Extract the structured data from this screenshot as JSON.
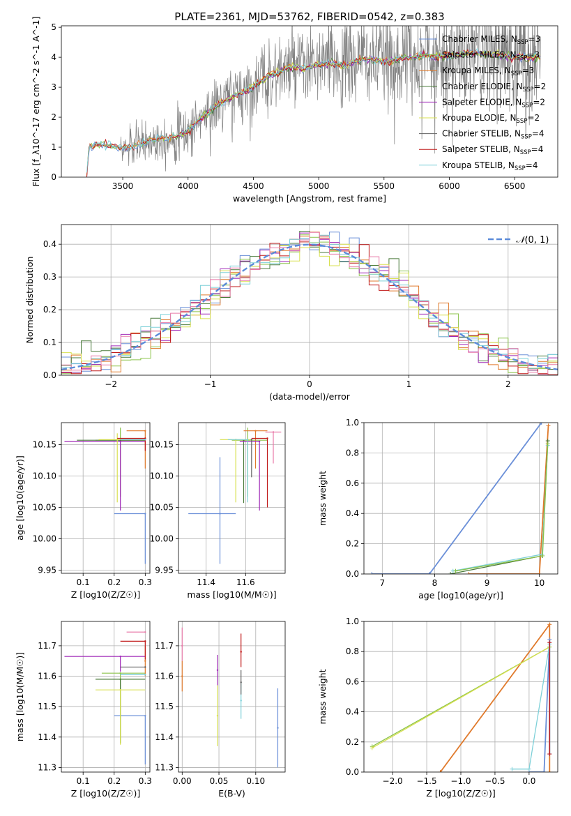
{
  "figure": {
    "title": "PLATE=2361, MJD=53762, FIBERID=0542, z=0.383"
  },
  "colors": {
    "Chabrier MILES": "#6a8fd8",
    "Salpeter MILES": "#8bc34a",
    "Kroupa MILES": "#e07a2c",
    "Chabrier ELODIE": "#4a7a3a",
    "Salpeter ELODIE": "#a02ab8",
    "Kroupa ELODIE": "#d8e050",
    "Chabrier STELIB": "#606060",
    "Salpeter STELIB": "#c01818",
    "Kroupa STELIB": "#7ed0d8",
    "extra_pink": "#e87aa8",
    "data_gray": "#808080",
    "normal_curve": "#5b8bd9",
    "grid": "#b0b0b0"
  },
  "chart_data": [
    {
      "id": "spectrum",
      "type": "line",
      "xlabel": "wavelength [Angstrom, rest frame]",
      "ylabel": "Flux [f_λ10^-17 erg cm^-2 s^-1 A^-1]",
      "xlim": [
        3030,
        6830
      ],
      "ylim": [
        0,
        5.05
      ],
      "xticks": [
        3500,
        4000,
        4500,
        5000,
        5500,
        6000,
        6500
      ],
      "yticks": [
        0,
        1,
        2,
        3,
        4,
        5
      ],
      "grid": false,
      "legend_position": "top-right",
      "legend": [
        {
          "label": "Chabrier MILES, N",
          "sub": "SSP",
          "tail": "=3"
        },
        {
          "label": "Salpeter MILES, N",
          "sub": "SSP",
          "tail": "=3"
        },
        {
          "label": "Kroupa MILES, N",
          "sub": "SSP",
          "tail": "=3"
        },
        {
          "label": "Chabrier ELODIE, N",
          "sub": "SSP",
          "tail": "=2"
        },
        {
          "label": "Salpeter ELODIE, N",
          "sub": "SSP",
          "tail": "=2"
        },
        {
          "label": "Kroupa ELODIE, N",
          "sub": "SSP",
          "tail": "=2"
        },
        {
          "label": "Chabrier STELIB, N",
          "sub": "SSP",
          "tail": "=4"
        },
        {
          "label": "Salpeter STELIB, N",
          "sub": "SSP",
          "tail": "=4"
        },
        {
          "label": "Kroupa STELIB, N",
          "sub": "SSP",
          "tail": "=4"
        }
      ],
      "model_continuum": [
        [
          3225,
          0.0
        ],
        [
          3240,
          1.0
        ],
        [
          3300,
          1.1
        ],
        [
          3400,
          1.05
        ],
        [
          3500,
          0.95
        ],
        [
          3600,
          1.05
        ],
        [
          3700,
          1.2
        ],
        [
          3800,
          1.3
        ],
        [
          3900,
          1.35
        ],
        [
          4000,
          1.5
        ],
        [
          4100,
          2.0
        ],
        [
          4200,
          2.3
        ],
        [
          4300,
          2.6
        ],
        [
          4400,
          2.8
        ],
        [
          4500,
          3.0
        ],
        [
          4600,
          3.35
        ],
        [
          4700,
          3.5
        ],
        [
          4800,
          3.7
        ],
        [
          4900,
          3.6
        ],
        [
          5000,
          3.75
        ],
        [
          5100,
          3.8
        ],
        [
          5200,
          3.7
        ],
        [
          5300,
          3.9
        ],
        [
          5400,
          3.95
        ],
        [
          5500,
          3.85
        ],
        [
          5600,
          3.95
        ],
        [
          5700,
          4.0
        ],
        [
          5800,
          4.05
        ],
        [
          5900,
          4.0
        ],
        [
          6000,
          4.05
        ],
        [
          6100,
          4.1
        ],
        [
          6200,
          4.15
        ],
        [
          6300,
          4.1
        ],
        [
          6400,
          4.05
        ],
        [
          6500,
          4.0
        ],
        [
          6600,
          4.0
        ],
        [
          6700,
          4.0
        ]
      ]
    },
    {
      "id": "residuals",
      "type": "line",
      "xlabel": "(data-model)/error",
      "ylabel": "Normed distribution",
      "xlim": [
        -2.5,
        2.5
      ],
      "ylim": [
        0,
        0.46
      ],
      "xticks": [
        -2,
        -1,
        0,
        1,
        2
      ],
      "yticks": [
        0.0,
        0.1,
        0.2,
        0.3,
        0.4
      ],
      "grid": true,
      "legend_position": "top-right",
      "legend": [
        {
          "label": "N(0,1)"
        }
      ],
      "bin_width": 0.1
    },
    {
      "id": "age_vs_Z",
      "type": "scatter",
      "xlabel": "Z [log10(Z/Z☉)]",
      "ylabel": "age  [log10(age/yr)]",
      "xlim": [
        0.03,
        0.315
      ],
      "ylim": [
        9.945,
        10.185
      ],
      "xticks": [
        0.1,
        0.2,
        0.3
      ],
      "yticks": [
        9.95,
        10.0,
        10.05,
        10.1,
        10.15
      ],
      "grid": true,
      "points": [
        {
          "model": "Chabrier MILES",
          "x": 0.3,
          "y": 10.04,
          "xerr": [
            0.1,
            0.0
          ],
          "yerr": [
            0.08,
            0.0
          ]
        },
        {
          "model": "Salpeter MILES",
          "x": 0.22,
          "y": 10.157,
          "xerr": [
            0.08,
            0.08
          ],
          "yerr": [
            0.09,
            0.02
          ]
        },
        {
          "model": "Kroupa MILES",
          "x": 0.3,
          "y": 10.172,
          "xerr": [
            0.06,
            0.0
          ],
          "yerr": [
            0.06,
            0.0
          ]
        },
        {
          "model": "Chabrier ELODIE",
          "x": 0.22,
          "y": 10.157,
          "xerr": [
            0.14,
            0.08
          ],
          "yerr": [
            0.0,
            0.0
          ]
        },
        {
          "model": "Salpeter ELODIE",
          "x": 0.22,
          "y": 10.155,
          "xerr": [
            0.18,
            0.08
          ],
          "yerr": [
            0.11,
            0.0
          ]
        },
        {
          "model": "Kroupa ELODIE",
          "x": 0.21,
          "y": 10.158,
          "xerr": [
            0.06,
            0.09
          ],
          "yerr": [
            0.1,
            0.01
          ]
        },
        {
          "model": "Chabrier STELIB",
          "x": 0.3,
          "y": 10.158,
          "xerr": [
            0.08,
            0.0
          ],
          "yerr": [
            0.0,
            0.0
          ]
        },
        {
          "model": "Salpeter STELIB",
          "x": 0.3,
          "y": 10.16,
          "xerr": [
            0.09,
            0.0
          ],
          "yerr": [
            0.02,
            0.0
          ]
        },
        {
          "model": "Kroupa STELIB",
          "x": 0.3,
          "y": 10.158,
          "xerr": [
            0.08,
            0.0
          ],
          "yerr": [
            0.0,
            0.0
          ]
        }
      ]
    },
    {
      "id": "age_vs_mass",
      "type": "scatter",
      "xlabel": "mass [log10(M/M☉)]",
      "ylabel": "",
      "xlim": [
        11.26,
        11.8
      ],
      "ylim": [
        9.945,
        10.185
      ],
      "xticks": [
        11.4,
        11.6
      ],
      "yticks": [
        9.95,
        10.0,
        10.05,
        10.1,
        10.15
      ],
      "grid": true,
      "points": [
        {
          "model": "Chabrier MILES",
          "x": 11.47,
          "y": 10.04,
          "xerr": [
            0.16,
            0.08
          ],
          "yerr": [
            0.08,
            0.09
          ]
        },
        {
          "model": "Salpeter MILES",
          "x": 11.61,
          "y": 10.157,
          "xerr": [
            0.08,
            0.1
          ],
          "yerr": [
            0.09,
            0.02
          ]
        },
        {
          "model": "Kroupa MILES",
          "x": 11.65,
          "y": 10.172,
          "xerr": [
            0.06,
            0.06
          ],
          "yerr": [
            0.06,
            0.0
          ]
        },
        {
          "model": "Chabrier ELODIE",
          "x": 11.59,
          "y": 10.157,
          "xerr": [
            0.0,
            0.0
          ],
          "yerr": [
            0.1,
            0.0
          ]
        },
        {
          "model": "Salpeter ELODIE",
          "x": 11.67,
          "y": 10.155,
          "xerr": [
            0.1,
            0.0
          ],
          "yerr": [
            0.11,
            0.0
          ]
        },
        {
          "model": "Kroupa ELODIE",
          "x": 11.55,
          "y": 10.158,
          "xerr": [
            0.08,
            0.08
          ],
          "yerr": [
            0.1,
            0.0
          ]
        },
        {
          "model": "Chabrier STELIB",
          "x": 11.63,
          "y": 10.158,
          "xerr": [
            0.0,
            0.0
          ],
          "yerr": [
            0.06,
            0.0
          ]
        },
        {
          "model": "Salpeter STELIB",
          "x": 11.71,
          "y": 10.16,
          "xerr": [
            0.08,
            0.0
          ],
          "yerr": [
            0.11,
            0.0
          ]
        },
        {
          "model": "Kroupa STELIB",
          "x": 11.61,
          "y": 10.158,
          "xerr": [
            0.1,
            0.0
          ],
          "yerr": [
            0.1,
            0.0
          ]
        },
        {
          "model": "extra_pink",
          "x": 11.74,
          "y": 10.17,
          "xerr": [
            0.04,
            0.04
          ],
          "yerr": [
            0.05,
            0.0
          ]
        }
      ]
    },
    {
      "id": "mass_weight_vs_age",
      "type": "line",
      "xlabel": "age  [log10(age/yr)]",
      "ylabel": "mass weight",
      "xlim": [
        6.65,
        10.35
      ],
      "ylim": [
        0,
        1.0
      ],
      "xticks": [
        7,
        8,
        9,
        10
      ],
      "yticks": [
        0.0,
        0.2,
        0.4,
        0.6,
        0.8,
        1.0
      ],
      "grid": true,
      "series": [
        {
          "model": "Chabrier MILES",
          "points": [
            [
              6.8,
              0.0
            ],
            [
              7.9,
              0.0
            ],
            [
              10.04,
              1.0
            ]
          ]
        },
        {
          "model": "Kroupa MILES",
          "points": [
            [
              8.65,
              0.0
            ],
            [
              10.0,
              0.0
            ],
            [
              10.17,
              0.98
            ]
          ]
        },
        {
          "model": "Chabrier ELODIE",
          "points": [
            [
              8.3,
              0.0
            ],
            [
              10.05,
              0.12
            ],
            [
              10.16,
              0.88
            ]
          ]
        },
        {
          "model": "Kroupa STELIB",
          "points": [
            [
              8.35,
              0.02
            ],
            [
              10.05,
              0.13
            ],
            [
              10.16,
              0.85
            ]
          ]
        },
        {
          "model": "Salpeter MILES",
          "points": [
            [
              8.4,
              0.02
            ],
            [
              10.06,
              0.12
            ],
            [
              10.16,
              0.86
            ]
          ]
        }
      ]
    },
    {
      "id": "mass_vs_Z",
      "type": "scatter",
      "xlabel": "Z [log10(Z/Z☉)]",
      "ylabel": "mass [log10(M/M☉)]",
      "xlim": [
        0.03,
        0.315
      ],
      "ylim": [
        11.285,
        11.78
      ],
      "xticks": [
        0.1,
        0.2,
        0.3
      ],
      "yticks": [
        11.3,
        11.4,
        11.5,
        11.6,
        11.7
      ],
      "grid": true,
      "points": [
        {
          "model": "Chabrier MILES",
          "x": 0.3,
          "y": 11.47,
          "xerr": [
            0.1,
            0.0
          ],
          "yerr": [
            0.16,
            0.0
          ]
        },
        {
          "model": "Salpeter MILES",
          "x": 0.22,
          "y": 11.61,
          "xerr": [
            0.06,
            0.08
          ],
          "yerr": [
            0.23,
            0.0
          ]
        },
        {
          "model": "Kroupa MILES",
          "x": 0.3,
          "y": 11.65,
          "xerr": [
            0.0,
            0.0
          ],
          "yerr": [
            0.05,
            0.05
          ]
        },
        {
          "model": "Chabrier ELODIE",
          "x": 0.22,
          "y": 11.59,
          "xerr": [
            0.08,
            0.08
          ],
          "yerr": [
            0.21,
            0.0
          ]
        },
        {
          "model": "Salpeter ELODIE",
          "x": 0.22,
          "y": 11.665,
          "xerr": [
            0.18,
            0.08
          ],
          "yerr": [
            0.05,
            0.0
          ]
        },
        {
          "model": "Kroupa ELODIE",
          "x": 0.22,
          "y": 11.555,
          "xerr": [
            0.08,
            0.08
          ],
          "yerr": [
            0.18,
            0.0
          ]
        },
        {
          "model": "Chabrier STELIB",
          "x": 0.3,
          "y": 11.63,
          "xerr": [
            0.08,
            0.0
          ],
          "yerr": [
            0.0,
            0.0
          ]
        },
        {
          "model": "Salpeter STELIB",
          "x": 0.3,
          "y": 11.715,
          "xerr": [
            0.08,
            0.0
          ],
          "yerr": [
            0.06,
            0.0
          ]
        },
        {
          "model": "Kroupa STELIB",
          "x": 0.3,
          "y": 11.605,
          "xerr": [
            0.08,
            0.0
          ],
          "yerr": [
            0.0,
            0.0
          ]
        },
        {
          "model": "extra_pink",
          "x": 0.3,
          "y": 11.745,
          "xerr": [
            0.06,
            0.0
          ],
          "yerr": [
            0.0,
            0.0
          ]
        }
      ]
    },
    {
      "id": "mass_vs_ebv",
      "type": "scatter",
      "xlabel": "E(B-V)",
      "ylabel": "",
      "xlim": [
        -0.005,
        0.14
      ],
      "ylim": [
        11.285,
        11.78
      ],
      "xticks": [
        0.0,
        0.05,
        0.1
      ],
      "yticks": [
        11.3,
        11.4,
        11.5,
        11.6,
        11.7
      ],
      "grid": true,
      "points": [
        {
          "model": "extra_pink",
          "x": 0.0,
          "y": 11.7,
          "yerr": [
            0.05,
            0.06
          ]
        },
        {
          "model": "Kroupa MILES",
          "x": 0.0,
          "y": 11.6,
          "yerr": [
            0.05,
            0.05
          ]
        },
        {
          "model": "Salpeter ELODIE",
          "x": 0.048,
          "y": 11.62,
          "yerr": [
            0.05,
            0.05
          ]
        },
        {
          "model": "Kroupa ELODIE",
          "x": 0.048,
          "y": 11.47,
          "yerr": [
            0.1,
            0.1
          ]
        },
        {
          "model": "Salpeter STELIB",
          "x": 0.08,
          "y": 11.68,
          "yerr": [
            0.05,
            0.06
          ]
        },
        {
          "model": "Kroupa STELIB",
          "x": 0.08,
          "y": 11.52,
          "yerr": [
            0.06,
            0.06
          ]
        },
        {
          "model": "Chabrier STELIB",
          "x": 0.08,
          "y": 11.58,
          "yerr": [
            0.04,
            0.04
          ]
        },
        {
          "model": "Chabrier MILES",
          "x": 0.13,
          "y": 11.43,
          "yerr": [
            0.13,
            0.13
          ]
        }
      ]
    },
    {
      "id": "mass_weight_vs_Z",
      "type": "line",
      "xlabel": "Z [log10(Z/Z☉)]",
      "ylabel": "mass weight",
      "xlim": [
        -2.42,
        0.42
      ],
      "ylim": [
        0,
        1.0
      ],
      "xticks": [
        -2.0,
        -1.5,
        -1.0,
        -0.5,
        0.0
      ],
      "yticks": [
        0.0,
        0.2,
        0.4,
        0.6,
        0.8,
        1.0
      ],
      "grid": true,
      "series": [
        {
          "model": "Kroupa MILES",
          "points": [
            [
              -1.3,
              0.0
            ],
            [
              0.3,
              0.98
            ],
            [
              0.3,
              0.0
            ]
          ]
        },
        {
          "model": "Salpeter MILES",
          "points": [
            [
              -2.3,
              0.17
            ],
            [
              0.3,
              0.83
            ]
          ]
        },
        {
          "model": "Kroupa ELODIE",
          "points": [
            [
              -2.3,
              0.16
            ],
            [
              0.3,
              0.83
            ]
          ]
        },
        {
          "model": "Chabrier MILES",
          "points": [
            [
              0.0,
              0.0
            ],
            [
              0.22,
              0.0
            ],
            [
              0.3,
              0.88
            ],
            [
              0.3,
              0.12
            ]
          ]
        },
        {
          "model": "Kroupa STELIB",
          "points": [
            [
              -0.25,
              0.02
            ],
            [
              0.0,
              0.02
            ],
            [
              0.3,
              0.85
            ]
          ]
        },
        {
          "model": "Salpeter STELIB",
          "points": [
            [
              0.3,
              0.12
            ],
            [
              0.3,
              0.86
            ]
          ]
        }
      ]
    }
  ]
}
